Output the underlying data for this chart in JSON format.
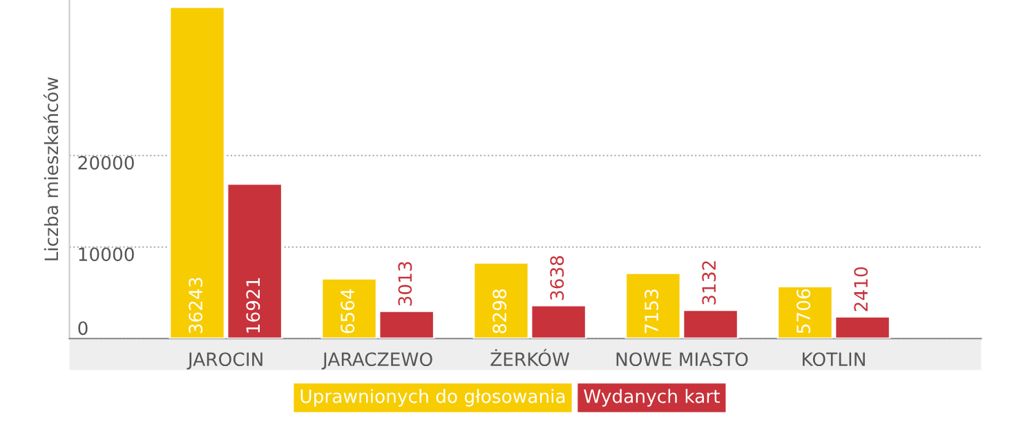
{
  "chart_data": {
    "type": "bar",
    "ylabel": "Liczba mieszkańców",
    "categories": [
      "JAROCIN",
      "JARACZEWO",
      "ŻERKÓW",
      "NOWE MIASTO",
      "KOTLIN"
    ],
    "series": [
      {
        "name": "Uprawnionych do głosowania",
        "color": "#f7cc00",
        "values": [
          36243,
          6564,
          8298,
          7153,
          5706
        ]
      },
      {
        "name": "Wydanych kart",
        "color": "#c8323a",
        "values": [
          16921,
          3013,
          3638,
          3132,
          2410
        ]
      }
    ],
    "ylim": [
      0,
      37000
    ],
    "yticks": [
      0,
      10000,
      20000
    ],
    "grid": "y",
    "data_labels": true,
    "legend": "bottom"
  }
}
